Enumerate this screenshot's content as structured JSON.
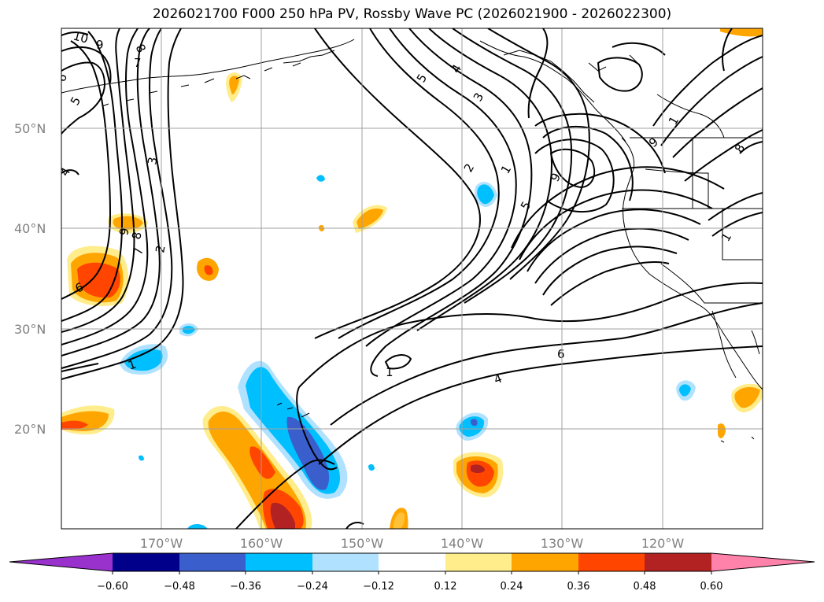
{
  "title": "2026021700 F000 250 hPa PV, Rossby Wave PC (2026021900 - 2026022300)",
  "lat_labels": [
    "50°N",
    "40°N",
    "30°N",
    "20°N"
  ],
  "lon_labels": [
    "170°W",
    "160°W",
    "150°W",
    "140°W",
    "130°W",
    "120°W"
  ],
  "map_extent": {
    "lon_min": -180,
    "lon_max": -110,
    "lat_min": 10,
    "lat_max": 60
  },
  "colorbar": {
    "ticks": [
      "−0.60",
      "−0.48",
      "−0.36",
      "−0.24",
      "−0.12",
      "0.12",
      "0.24",
      "0.36",
      "0.48",
      "0.60"
    ],
    "colors": [
      "#9932cc",
      "#00008b",
      "#3a5fcd",
      "#00bfff",
      "#b0e2ff",
      "#ffffff",
      "#ffec8b",
      "#ffa500",
      "#ff4500",
      "#b22222",
      "#ff82ab"
    ]
  },
  "contour_labels": [
    "10",
    "9",
    "8",
    "7",
    "6",
    "5",
    "4",
    "3",
    "2",
    "1",
    "9",
    "8",
    "7",
    "6",
    "5",
    "4",
    "3",
    "2",
    "1",
    "5",
    "9",
    "6",
    "4",
    "1",
    "1",
    "8",
    "9",
    "1"
  ],
  "fill_colors": {
    "pos_light": "#ffec8b",
    "pos_mid": "#ffa500",
    "pos_strong": "#ff4500",
    "pos_max": "#b22222",
    "neg_light": "#b0e2ff",
    "neg_mid": "#00bfff",
    "neg_strong": "#3a5fcd"
  }
}
